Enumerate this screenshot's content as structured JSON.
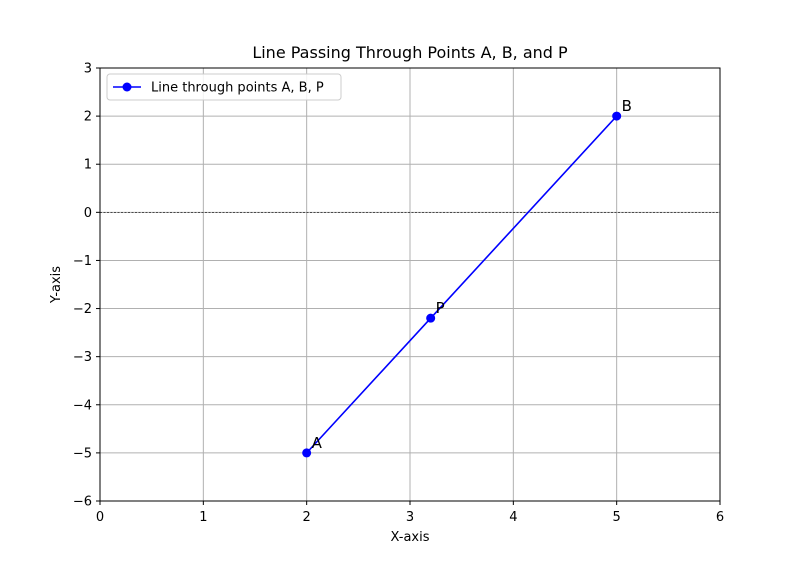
{
  "chart_data": {
    "type": "line",
    "title": "Line Passing Through Points A, B, and P",
    "xlabel": "X-axis",
    "ylabel": "Y-axis",
    "xlim": [
      0,
      6
    ],
    "ylim": [
      -6,
      3
    ],
    "xticks": [
      0,
      1,
      2,
      3,
      4,
      5,
      6
    ],
    "yticks": [
      -6,
      -5,
      -4,
      -3,
      -2,
      -1,
      0,
      1,
      2,
      3
    ],
    "grid": true,
    "zero_line": true,
    "legend": {
      "position": "top-left",
      "entries": [
        "Line through points A, B, P"
      ]
    },
    "series": [
      {
        "name": "Line through points A, B, P",
        "color": "#0000ff",
        "marker": "circle",
        "x": [
          2,
          3.2,
          5
        ],
        "y": [
          -5,
          -2.2,
          2
        ]
      }
    ],
    "points": [
      {
        "label": "A",
        "x": 2,
        "y": -5
      },
      {
        "label": "P",
        "x": 3.2,
        "y": -2.2
      },
      {
        "label": "B",
        "x": 5,
        "y": 2
      }
    ]
  }
}
